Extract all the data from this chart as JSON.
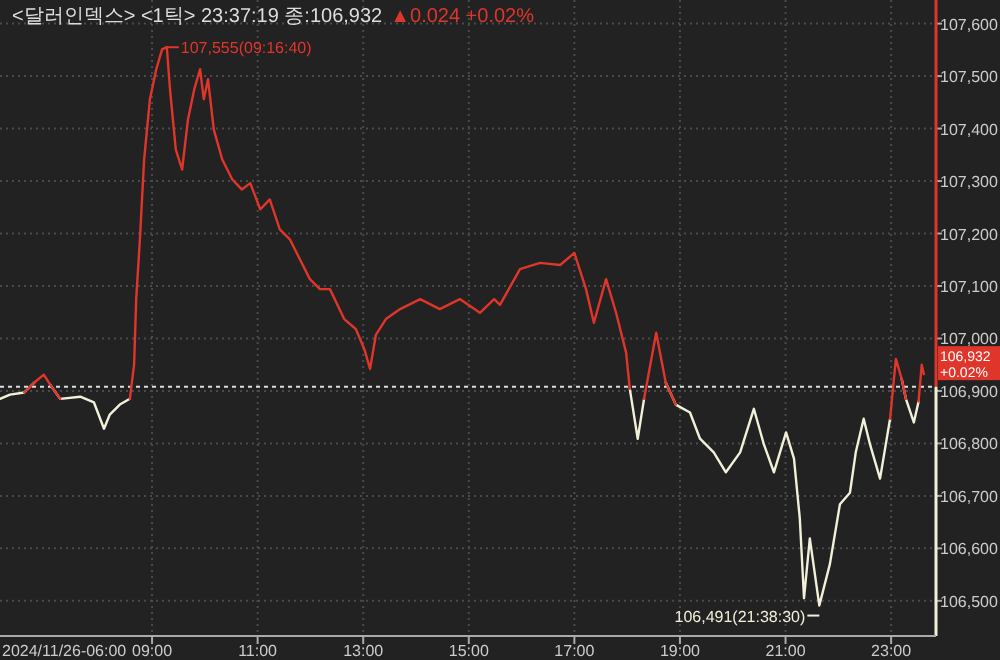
{
  "chart_data": {
    "type": "line",
    "title": "<달러인덱스> <1틱> 23:37:19 종:106,932",
    "subtitle": "▲0.024 +0.02%",
    "x": [
      6.12,
      6.31,
      6.58,
      6.77,
      6.95,
      7.07,
      7.26,
      7.64,
      7.9,
      8.09,
      8.2,
      8.39,
      8.58,
      8.66,
      8.7,
      8.77,
      8.85,
      8.96,
      9.08,
      9.19,
      9.28,
      9.34,
      9.45,
      9.57,
      9.68,
      9.8,
      9.91,
      9.98,
      10.06,
      10.17,
      10.33,
      10.52,
      10.7,
      10.86,
      11.05,
      11.23,
      11.42,
      11.61,
      11.8,
      11.99,
      12.18,
      12.37,
      12.64,
      12.86,
      13.02,
      13.13,
      13.24,
      13.43,
      13.7,
      14.08,
      14.45,
      14.83,
      15.21,
      15.48,
      15.59,
      15.97,
      16.35,
      16.73,
      17.0,
      17.22,
      17.37,
      17.6,
      17.79,
      17.98,
      18.05,
      18.2,
      18.32,
      18.55,
      18.73,
      18.92,
      19.19,
      19.38,
      19.64,
      19.87,
      20.14,
      20.4,
      20.59,
      20.78,
      21.01,
      21.16,
      21.27,
      21.35,
      21.46,
      21.64,
      21.84,
      22.03,
      22.22,
      22.33,
      22.48,
      22.6,
      22.79,
      22.98,
      23.09,
      23.2,
      23.28,
      23.43,
      23.52,
      23.58,
      23.62
    ],
    "series": [
      {
        "color": "#e0352b",
        "values": [
          null,
          null,
          106897,
          106916,
          106931,
          106912,
          106885,
          null,
          null,
          null,
          null,
          null,
          106885,
          106950,
          107075,
          107189,
          107341,
          107456,
          107513,
          107551,
          107555,
          107475,
          107360,
          107322,
          107417,
          107475,
          107513,
          107456,
          107494,
          107398,
          107341,
          107303,
          107284,
          107296,
          107246,
          107265,
          107208,
          107189,
          107151,
          107113,
          107094,
          107094,
          107037,
          107018,
          106980,
          106942,
          107007,
          107037,
          107056,
          107075,
          107056,
          107075,
          107049,
          107075,
          107064,
          107132,
          107144,
          107140,
          107163,
          107094,
          107030,
          107113,
          107049,
          106973,
          106904,
          null,
          106885,
          107011,
          106916,
          106874,
          null,
          null,
          null,
          null,
          null,
          null,
          null,
          null,
          null,
          null,
          null,
          null,
          null,
          null,
          null,
          null,
          null,
          null,
          null,
          null,
          null,
          106847,
          106961,
          106923,
          106885,
          null,
          106880,
          106950,
          106932
        ]
      },
      {
        "color": "#f2f0d8",
        "values": [
          106885,
          106893,
          106897,
          106916,
          null,
          106912,
          106885,
          106889,
          106878,
          106828,
          106855,
          106874,
          106885,
          null,
          null,
          null,
          null,
          null,
          null,
          null,
          null,
          null,
          null,
          null,
          null,
          null,
          null,
          null,
          null,
          null,
          null,
          null,
          null,
          null,
          null,
          null,
          null,
          null,
          null,
          null,
          null,
          null,
          null,
          null,
          null,
          null,
          null,
          null,
          null,
          null,
          null,
          null,
          null,
          null,
          null,
          null,
          null,
          null,
          null,
          null,
          null,
          null,
          null,
          null,
          106904,
          106809,
          106885,
          null,
          106916,
          106874,
          106859,
          106809,
          106783,
          106745,
          106783,
          106866,
          106798,
          106745,
          106821,
          106771,
          106657,
          106505,
          106619,
          106491,
          106570,
          106684,
          106706,
          106783,
          106847,
          106798,
          106733,
          106847,
          null,
          106923,
          106885,
          106840,
          106880,
          null,
          null
        ]
      }
    ],
    "xlim": [
      6.12,
      23.85
    ],
    "ylim": [
      106433,
      107645
    ],
    "xticks": [
      {
        "value": 9,
        "label": "09:00"
      },
      {
        "value": 11,
        "label": "11:00"
      },
      {
        "value": 13,
        "label": "13:00"
      },
      {
        "value": 15,
        "label": "15:00"
      },
      {
        "value": 17,
        "label": "17:00"
      },
      {
        "value": 19,
        "label": "19:00"
      },
      {
        "value": 21,
        "label": "21:00"
      },
      {
        "value": 23,
        "label": "23:00"
      }
    ],
    "yticks": [
      {
        "value": 106500,
        "label": "106,500"
      },
      {
        "value": 106600,
        "label": "106,600"
      },
      {
        "value": 106700,
        "label": "106,700"
      },
      {
        "value": 106800,
        "label": "106,800"
      },
      {
        "value": 106900,
        "label": "106,900"
      },
      {
        "value": 107000,
        "label": "107,000"
      },
      {
        "value": 107100,
        "label": "107,100"
      },
      {
        "value": 107200,
        "label": "107,200"
      },
      {
        "value": 107300,
        "label": "107,300"
      },
      {
        "value": 107400,
        "label": "107,400"
      },
      {
        "value": 107500,
        "label": "107,500"
      },
      {
        "value": 107600,
        "label": "107,600"
      }
    ],
    "ref_lines": [
      {
        "axis": "y",
        "value": 106908,
        "color": "#dddddd",
        "line_style": "dashed"
      }
    ],
    "annotations": [
      "2024/11/26-06:00",
      {
        "text": "107,555(09:16:40)",
        "x": 9.28,
        "y": 107555
      },
      {
        "text": "106,491(21:38:30)",
        "x": 21.64,
        "y": 106491
      },
      {
        "text": "106,932\n+0.02%",
        "x": 23.62,
        "y": 106932
      }
    ],
    "grid": true
  }
}
